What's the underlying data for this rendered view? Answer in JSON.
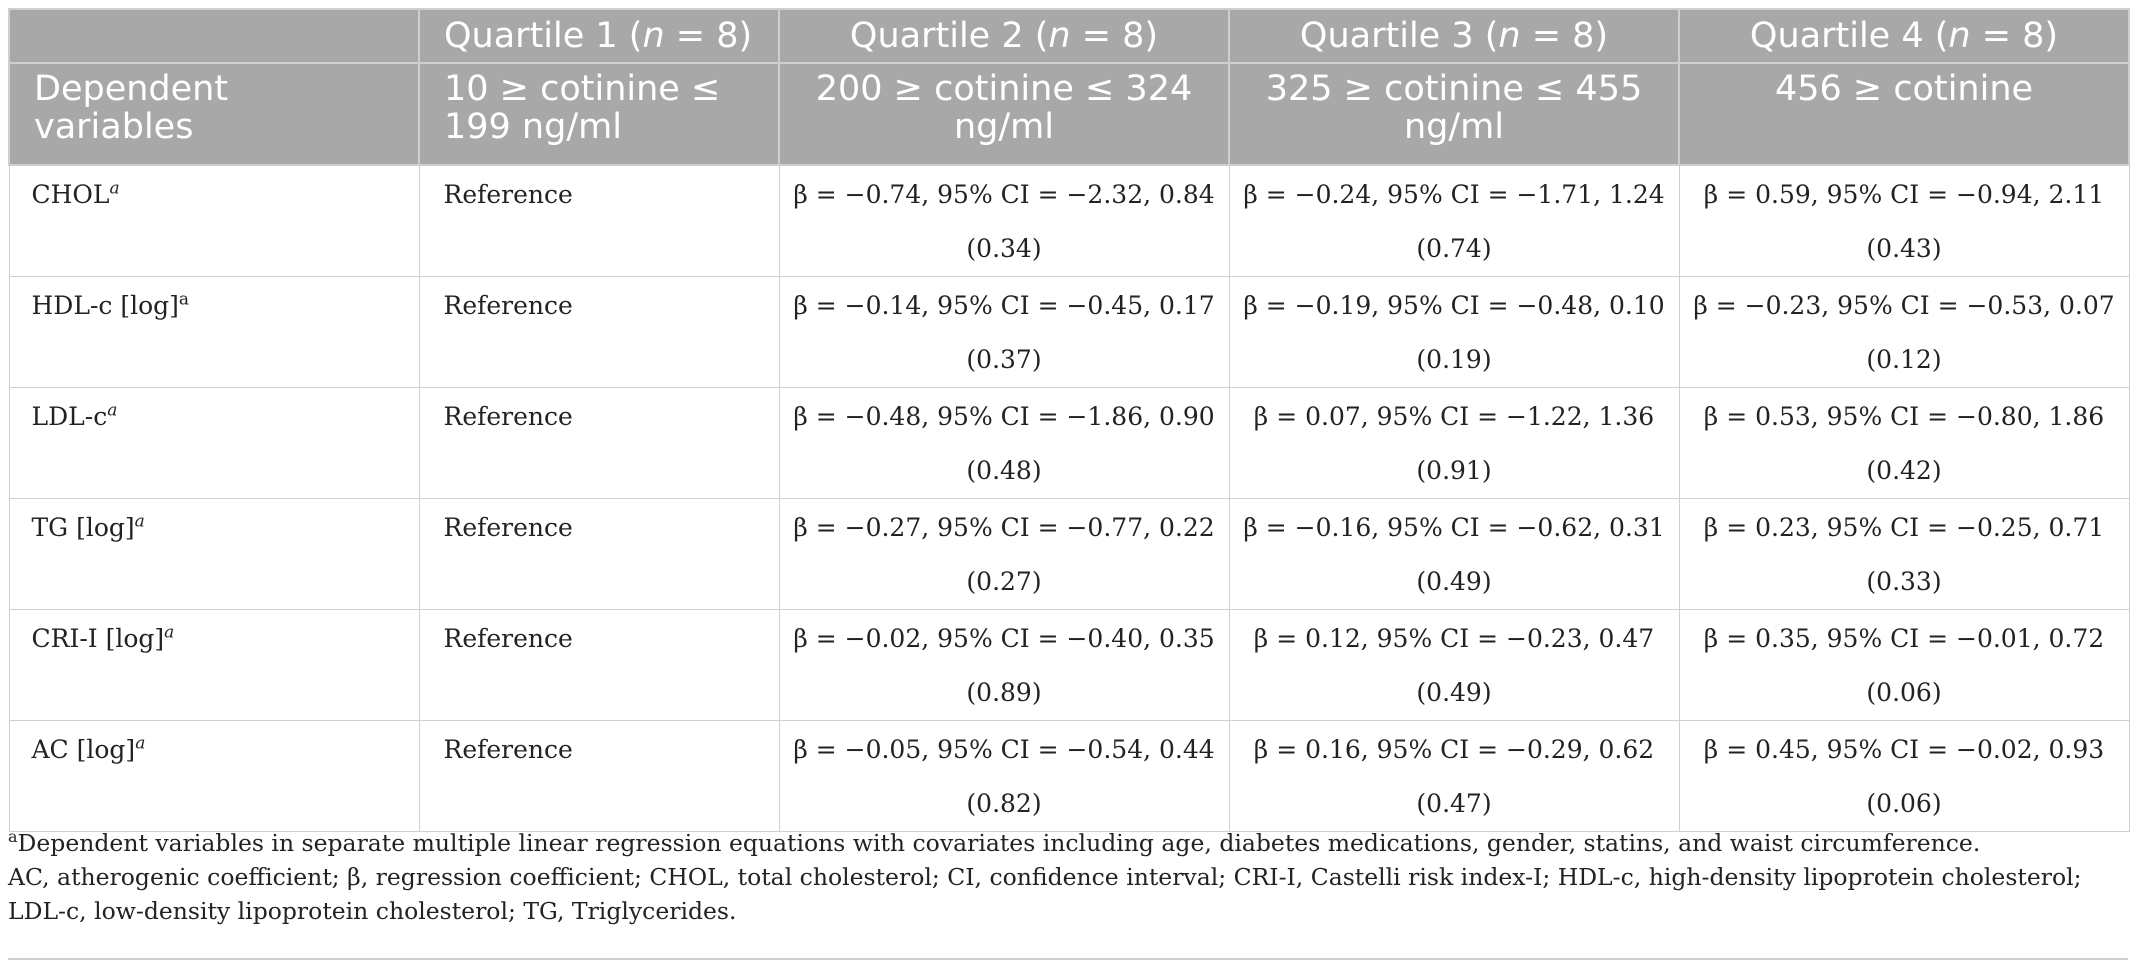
{
  "header": {
    "row1": [
      {
        "prefix": "",
        "italic": "",
        "suffix": ""
      },
      {
        "prefix": "Quartile 1 (",
        "italic": "n",
        "suffix": " = 8)"
      },
      {
        "prefix": "Quartile 2 (",
        "italic": "n",
        "suffix": " = 8)"
      },
      {
        "prefix": "Quartile 3 (",
        "italic": "n",
        "suffix": " = 8)"
      },
      {
        "prefix": "Quartile 4 (",
        "italic": "n",
        "suffix": " = 8)"
      }
    ],
    "row2": [
      "Dependent variables",
      "10 ≥ cotinine ≤ 199 ng/ml",
      "200 ≥ cotinine ≤ 324 ng/ml",
      "325 ≥ cotinine ≤ 455 ng/ml",
      "456 ≥ cotinine"
    ]
  },
  "rows": [
    {
      "variable": "CHOL",
      "sup": "a",
      "q1": "Reference",
      "q2": "β = −0.74, 95% CI = −2.32, 0.84",
      "q2p": "(0.34)",
      "q3": "β = −0.24, 95% CI = −1.71, 1.24",
      "q3p": "(0.74)",
      "q4": "β = 0.59, 95% CI = −0.94, 2.11",
      "q4p": "(0.43)"
    },
    {
      "variable": "HDL-c [log]",
      "sup": "a",
      "q1": "Reference",
      "q2": "β = −0.14, 95% CI = −0.45, 0.17",
      "q2p": "(0.37)",
      "q3": "β = −0.19, 95% CI = −0.48, 0.10",
      "q3p": "(0.19)",
      "q4": "β = −0.23, 95% CI = −0.53, 0.07",
      "q4p": "(0.12)"
    },
    {
      "variable": "LDL-c",
      "sup": "a",
      "q1": "Reference",
      "q2": "β = −0.48, 95% CI = −1.86, 0.90",
      "q2p": "(0.48)",
      "q3": "β = 0.07, 95% CI = −1.22, 1.36",
      "q3p": "(0.91)",
      "q4": "β = 0.53, 95% CI = −0.80, 1.86",
      "q4p": "(0.42)"
    },
    {
      "variable": "TG [log]",
      "sup": "a",
      "q1": "Reference",
      "q2": "β = −0.27, 95% CI = −0.77, 0.22",
      "q2p": "(0.27)",
      "q3": "β = −0.16, 95% CI = −0.62, 0.31",
      "q3p": "(0.49)",
      "q4": "β = 0.23, 95% CI = −0.25, 0.71",
      "q4p": "(0.33)"
    },
    {
      "variable": "CRI-I [log]",
      "sup": "a",
      "q1": "Reference",
      "q2": "β = −0.02, 95% CI = −0.40, 0.35",
      "q2p": "(0.89)",
      "q3": "β = 0.12, 95% CI = −0.23, 0.47",
      "q3p": "(0.49)",
      "q4": "β = 0.35, 95% CI = −0.01, 0.72",
      "q4p": "(0.06)"
    },
    {
      "variable": "AC [log]",
      "sup": "a",
      "q1": "Reference",
      "q2": "β = −0.05, 95% CI = −0.54, 0.44",
      "q2p": "(0.82)",
      "q3": "β = 0.16, 95% CI = −0.29, 0.62",
      "q3p": "(0.47)",
      "q4": "β = 0.45, 95% CI = −0.02, 0.93",
      "q4p": "(0.06)"
    }
  ],
  "footnotes": {
    "note_a_sup": "a",
    "note_a": "Dependent variables in separate multiple linear regression equations with covariates including age, diabetes medications, gender, statins, and waist circumference.",
    "abbreviations": "AC, atherogenic coefficient; β, regression coefficient; CHOL, total cholesterol; CI, confidence interval; CRI-I, Castelli risk index-I; HDL-c, high-density lipoprotein cholesterol; LDL-c, low-density lipoprotein cholesterol; TG, Triglycerides."
  }
}
